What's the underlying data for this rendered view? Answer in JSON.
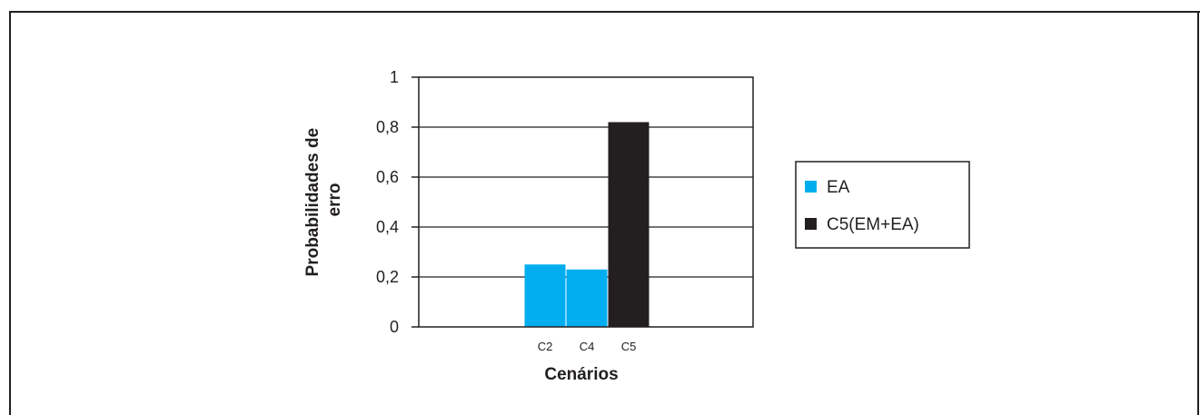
{
  "chart_data": {
    "type": "bar",
    "categories": [
      "C2",
      "C4",
      "C5"
    ],
    "series": [
      {
        "name": "EA",
        "values": [
          0.25,
          0.23,
          null
        ],
        "color": "#00aeef"
      },
      {
        "name": "C5(EM+EA)",
        "values": [
          null,
          null,
          0.82
        ],
        "color": "#231f20"
      }
    ],
    "xlabel": "Cenários",
    "ylabel_lines": [
      "Probabilidades de",
      "erro"
    ],
    "ylim": [
      0,
      1
    ],
    "yticks": [
      0,
      0.2,
      0.4,
      0.6,
      0.8,
      1
    ],
    "ytick_labels": [
      "0",
      "0,2",
      "0,4",
      "0,6",
      "0,8",
      "1"
    ],
    "grid": true,
    "legend_position": "right"
  }
}
